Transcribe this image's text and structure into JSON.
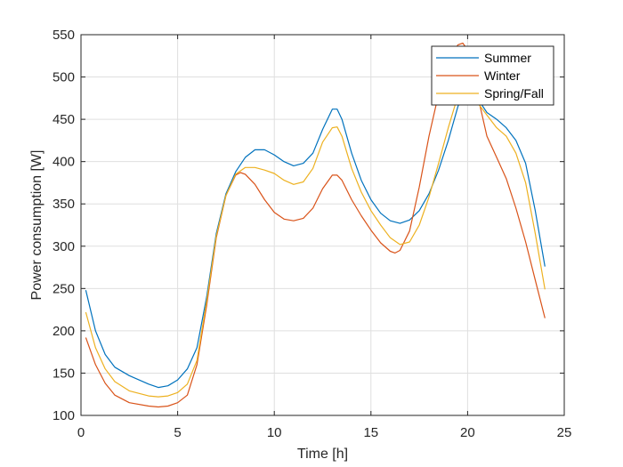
{
  "chart_data": {
    "type": "line",
    "title": "",
    "xlabel": "Time [h]",
    "ylabel": "Power consumption [W]",
    "xlim": [
      0,
      25
    ],
    "ylim": [
      100,
      550
    ],
    "xticks": [
      0,
      5,
      10,
      15,
      20,
      25
    ],
    "yticks": [
      100,
      150,
      200,
      250,
      300,
      350,
      400,
      450,
      500,
      550
    ],
    "grid": true,
    "legend": "top-right",
    "series": [
      {
        "name": "Summer",
        "color": "#0072BD",
        "points": [
          [
            0.25,
            248
          ],
          [
            0.75,
            200
          ],
          [
            1.25,
            172
          ],
          [
            1.75,
            157
          ],
          [
            2.5,
            147
          ],
          [
            3.5,
            137
          ],
          [
            4,
            133
          ],
          [
            4.5,
            135
          ],
          [
            5,
            142
          ],
          [
            5.5,
            155
          ],
          [
            6,
            180
          ],
          [
            6.5,
            240
          ],
          [
            7,
            315
          ],
          [
            7.5,
            362
          ],
          [
            8,
            388
          ],
          [
            8.5,
            405
          ],
          [
            9,
            414
          ],
          [
            9.5,
            414
          ],
          [
            10,
            408
          ],
          [
            10.5,
            400
          ],
          [
            11,
            395
          ],
          [
            11.5,
            398
          ],
          [
            12,
            410
          ],
          [
            12.5,
            438
          ],
          [
            13,
            462
          ],
          [
            13.25,
            462
          ],
          [
            13.5,
            450
          ],
          [
            14,
            410
          ],
          [
            14.5,
            378
          ],
          [
            15,
            355
          ],
          [
            15.5,
            339
          ],
          [
            16,
            330
          ],
          [
            16.5,
            327
          ],
          [
            17,
            331
          ],
          [
            17.5,
            342
          ],
          [
            18,
            362
          ],
          [
            18.5,
            390
          ],
          [
            19,
            425
          ],
          [
            19.5,
            465
          ],
          [
            20,
            490
          ],
          [
            20.5,
            475
          ],
          [
            21,
            458
          ],
          [
            21.5,
            450
          ],
          [
            22,
            440
          ],
          [
            22.5,
            425
          ],
          [
            23,
            398
          ],
          [
            23.5,
            342
          ],
          [
            24,
            276
          ]
        ]
      },
      {
        "name": "Winter",
        "color": "#D95319",
        "points": [
          [
            0.25,
            192
          ],
          [
            0.75,
            160
          ],
          [
            1.25,
            138
          ],
          [
            1.75,
            124
          ],
          [
            2.5,
            115
          ],
          [
            3.5,
            111
          ],
          [
            4,
            110
          ],
          [
            4.5,
            111
          ],
          [
            5,
            115
          ],
          [
            5.5,
            124
          ],
          [
            6,
            160
          ],
          [
            6.5,
            230
          ],
          [
            7,
            310
          ],
          [
            7.5,
            360
          ],
          [
            8,
            384
          ],
          [
            8.25,
            387
          ],
          [
            8.5,
            385
          ],
          [
            9,
            373
          ],
          [
            9.5,
            355
          ],
          [
            10,
            340
          ],
          [
            10.5,
            332
          ],
          [
            11,
            330
          ],
          [
            11.5,
            333
          ],
          [
            12,
            345
          ],
          [
            12.5,
            368
          ],
          [
            13,
            384
          ],
          [
            13.25,
            384
          ],
          [
            13.5,
            378
          ],
          [
            14,
            355
          ],
          [
            14.5,
            336
          ],
          [
            15,
            319
          ],
          [
            15.5,
            304
          ],
          [
            16,
            294
          ],
          [
            16.25,
            292
          ],
          [
            16.5,
            295
          ],
          [
            17,
            318
          ],
          [
            17.5,
            370
          ],
          [
            18,
            430
          ],
          [
            18.5,
            480
          ],
          [
            19,
            520
          ],
          [
            19.5,
            538
          ],
          [
            19.75,
            540
          ],
          [
            20,
            532
          ],
          [
            20.5,
            480
          ],
          [
            21,
            430
          ],
          [
            21.5,
            405
          ],
          [
            22,
            380
          ],
          [
            22.5,
            345
          ],
          [
            23,
            305
          ],
          [
            23.5,
            260
          ],
          [
            24,
            215
          ]
        ]
      },
      {
        "name": "Spring/Fall",
        "color": "#EDB120",
        "points": [
          [
            0.25,
            222
          ],
          [
            0.75,
            180
          ],
          [
            1.25,
            155
          ],
          [
            1.75,
            140
          ],
          [
            2.5,
            129
          ],
          [
            3.5,
            123
          ],
          [
            4,
            122
          ],
          [
            4.5,
            123
          ],
          [
            5,
            127
          ],
          [
            5.5,
            137
          ],
          [
            6,
            165
          ],
          [
            6.5,
            235
          ],
          [
            7,
            312
          ],
          [
            7.5,
            360
          ],
          [
            8,
            385
          ],
          [
            8.5,
            393
          ],
          [
            9,
            393
          ],
          [
            9.5,
            390
          ],
          [
            10,
            386
          ],
          [
            10.5,
            378
          ],
          [
            11,
            373
          ],
          [
            11.5,
            376
          ],
          [
            12,
            392
          ],
          [
            12.5,
            423
          ],
          [
            13,
            440
          ],
          [
            13.25,
            441
          ],
          [
            13.5,
            430
          ],
          [
            14,
            392
          ],
          [
            14.5,
            364
          ],
          [
            15,
            342
          ],
          [
            15.5,
            325
          ],
          [
            16,
            310
          ],
          [
            16.5,
            302
          ],
          [
            17,
            305
          ],
          [
            17.5,
            325
          ],
          [
            18,
            358
          ],
          [
            18.5,
            398
          ],
          [
            19,
            440
          ],
          [
            19.5,
            478
          ],
          [
            20,
            482
          ],
          [
            20.5,
            470
          ],
          [
            21,
            455
          ],
          [
            21.5,
            440
          ],
          [
            22,
            430
          ],
          [
            22.5,
            410
          ],
          [
            23,
            375
          ],
          [
            23.5,
            315
          ],
          [
            24,
            249
          ]
        ]
      }
    ]
  }
}
